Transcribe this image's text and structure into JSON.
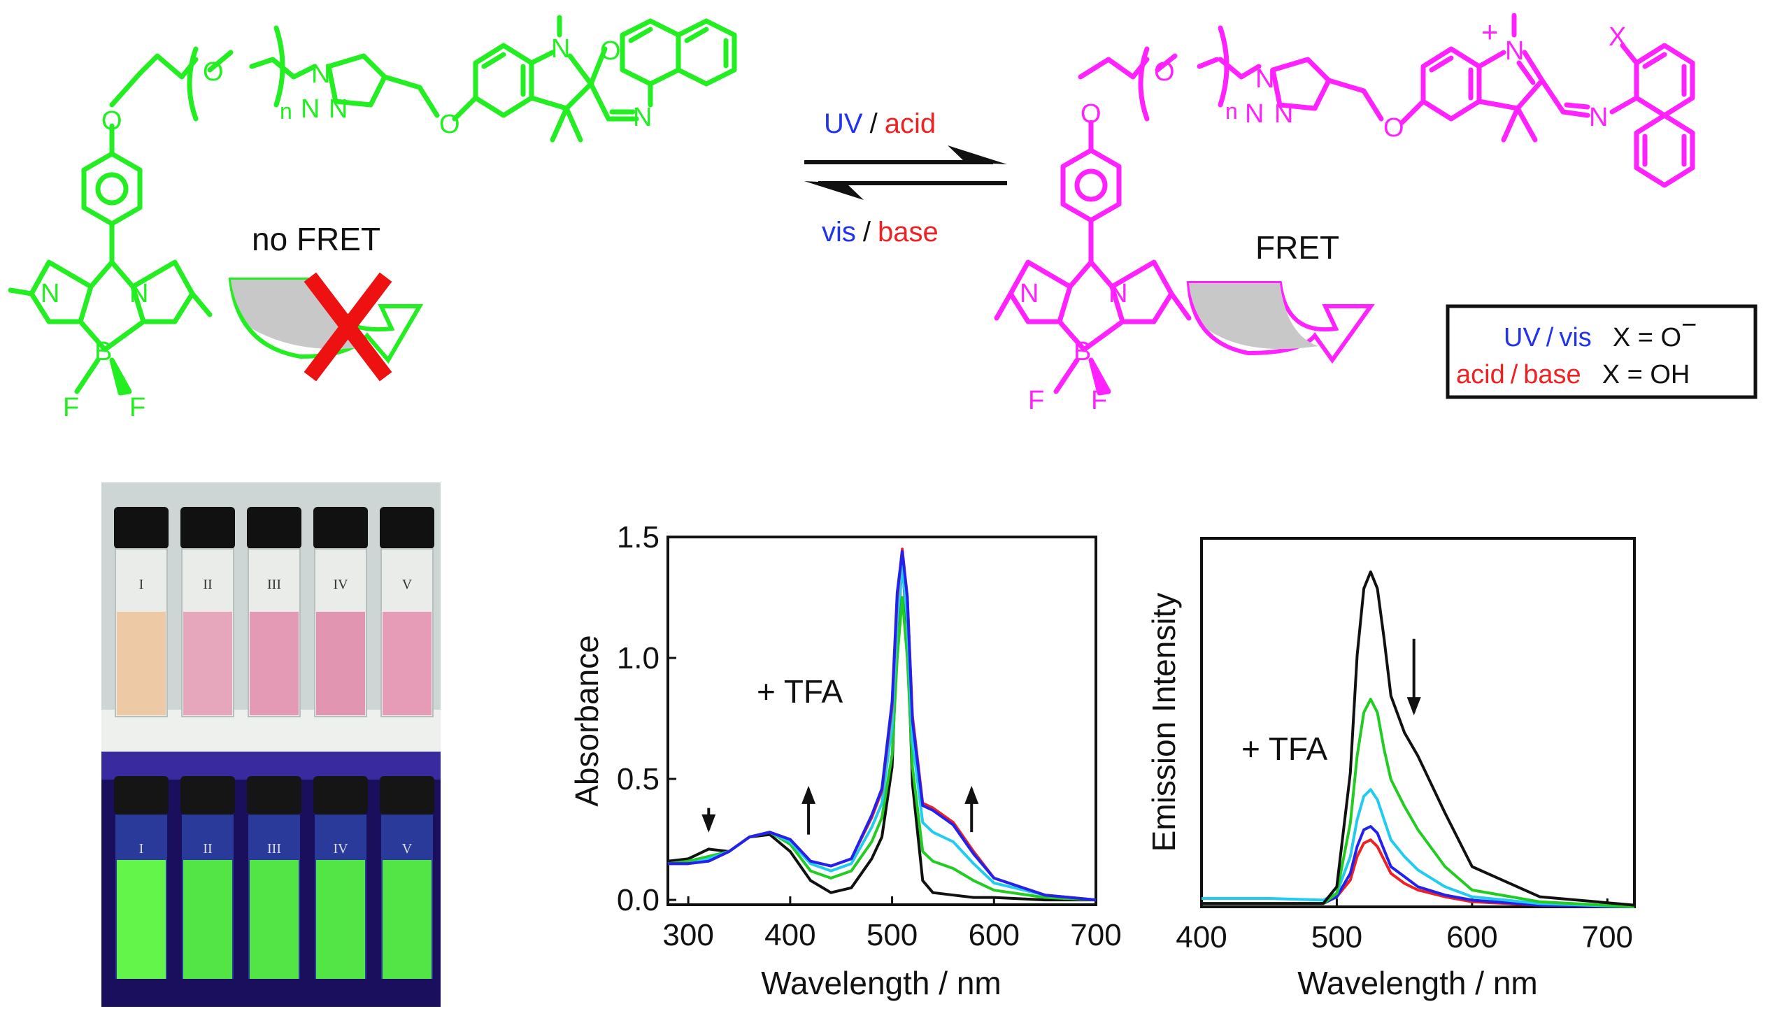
{
  "scheme": {
    "left_molecule": {
      "color": "#22ee22",
      "atoms": {
        "O1": "O",
        "O2": "O",
        "n": "n",
        "N1": "N",
        "N2": "N",
        "N3": "N",
        "O3": "O",
        "N_ind": "N",
        "O_ox": "O",
        "N_ox": "N",
        "Npy1": "N",
        "Npy2": "N",
        "B": "B",
        "F1": "F",
        "F2": "F"
      },
      "fret_label": "no FRET"
    },
    "right_molecule": {
      "color": "#ff22ff",
      "atoms": {
        "O1": "O",
        "O2": "O",
        "n": "n",
        "N1": "N",
        "N2": "N",
        "N3": "N",
        "O3": "O",
        "N_ind": "N",
        "plus": "+",
        "N_im": "N",
        "X": "X",
        "Npy1": "N",
        "Npy2": "N",
        "B": "B",
        "F1": "F",
        "F2": "F"
      },
      "fret_label": "FRET"
    },
    "arrows": {
      "forward": {
        "stimulus1": "UV",
        "sep": "/",
        "stimulus2": "acid"
      },
      "reverse": {
        "stimulus1": "vis",
        "sep": "/",
        "stimulus2": "base"
      }
    },
    "legend": {
      "row1": {
        "cond1": "UV",
        "sep": "/",
        "cond2": "vis",
        "x": "X = O",
        "charge": "−"
      },
      "row2": {
        "cond1": "acid",
        "sep": "/",
        "cond2": "base",
        "x": "X = OH"
      }
    },
    "colors": {
      "blue": "#2233ee",
      "red": "#ee2222",
      "black": "#111111",
      "gray": "#c8c8c8",
      "cross": "#ee1111"
    }
  },
  "photo": {
    "vials": [
      "I",
      "II",
      "III",
      "IV",
      "V"
    ],
    "daylight_colors": [
      "#edc9a6",
      "#e6a6bc",
      "#e49ab4",
      "#e295b1",
      "#e69bb7"
    ],
    "uv_colors": [
      "#66ff44",
      "#55ee40",
      "#55ee40",
      "#55ee40",
      "#55ee40"
    ]
  },
  "chart_data": [
    {
      "type": "line",
      "xlabel": "Wavelength / nm",
      "ylabel": "Absorbance",
      "annotation": "+ TFA",
      "xlim": [
        280,
        700
      ],
      "ylim": [
        -0.02,
        1.5
      ],
      "xticks": [
        300,
        400,
        500,
        600,
        700
      ],
      "yticks": [
        0.0,
        0.5,
        1.0,
        1.5
      ],
      "ytick_labels": [
        "0.0",
        "0.5",
        "1.0",
        "1.5"
      ],
      "arrows": [
        {
          "x": 320,
          "y_from": 0.38,
          "y_to": 0.29,
          "dir": "down"
        },
        {
          "x": 418,
          "y_from": 0.27,
          "y_to": 0.46,
          "dir": "up"
        },
        {
          "x": 578,
          "y_from": 0.28,
          "y_to": 0.46,
          "dir": "up"
        }
      ],
      "series": [
        {
          "color": "#111111",
          "x": [
            280,
            300,
            320,
            340,
            360,
            380,
            400,
            420,
            440,
            460,
            480,
            490,
            500,
            505,
            510,
            515,
            520,
            530,
            540,
            560,
            580,
            600,
            650,
            700
          ],
          "y": [
            0.16,
            0.17,
            0.21,
            0.2,
            0.26,
            0.27,
            0.2,
            0.08,
            0.03,
            0.05,
            0.17,
            0.26,
            0.55,
            1.1,
            1.4,
            1.1,
            0.48,
            0.08,
            0.03,
            0.02,
            0.01,
            0.01,
            0.0,
            0.0
          ]
        },
        {
          "color": "#22cc22",
          "x": [
            280,
            300,
            320,
            340,
            360,
            380,
            400,
            420,
            440,
            460,
            480,
            490,
            500,
            505,
            510,
            515,
            520,
            530,
            540,
            560,
            580,
            600,
            650,
            700
          ],
          "y": [
            0.15,
            0.16,
            0.18,
            0.2,
            0.26,
            0.28,
            0.23,
            0.12,
            0.09,
            0.12,
            0.24,
            0.34,
            0.6,
            1.0,
            1.25,
            1.0,
            0.55,
            0.2,
            0.16,
            0.13,
            0.08,
            0.04,
            0.01,
            0.0
          ]
        },
        {
          "color": "#22ccee",
          "x": [
            280,
            300,
            320,
            340,
            360,
            380,
            400,
            420,
            440,
            460,
            480,
            490,
            500,
            505,
            510,
            515,
            520,
            530,
            540,
            560,
            580,
            600,
            650,
            700
          ],
          "y": [
            0.15,
            0.15,
            0.17,
            0.2,
            0.26,
            0.28,
            0.24,
            0.15,
            0.12,
            0.15,
            0.3,
            0.4,
            0.72,
            1.15,
            1.38,
            1.15,
            0.66,
            0.32,
            0.28,
            0.24,
            0.15,
            0.07,
            0.02,
            0.0
          ]
        },
        {
          "color": "#ee2222",
          "x": [
            280,
            300,
            320,
            340,
            360,
            380,
            400,
            420,
            440,
            460,
            480,
            490,
            500,
            505,
            510,
            515,
            520,
            530,
            540,
            560,
            580,
            600,
            650,
            700
          ],
          "y": [
            0.15,
            0.15,
            0.16,
            0.2,
            0.26,
            0.28,
            0.25,
            0.16,
            0.14,
            0.17,
            0.34,
            0.45,
            0.8,
            1.25,
            1.45,
            1.25,
            0.76,
            0.4,
            0.38,
            0.32,
            0.2,
            0.09,
            0.02,
            0.0
          ]
        },
        {
          "color": "#2222ee",
          "x": [
            280,
            300,
            320,
            340,
            360,
            380,
            400,
            420,
            440,
            460,
            480,
            490,
            500,
            505,
            510,
            515,
            520,
            530,
            540,
            560,
            580,
            600,
            650,
            700
          ],
          "y": [
            0.15,
            0.15,
            0.16,
            0.2,
            0.26,
            0.28,
            0.25,
            0.16,
            0.14,
            0.17,
            0.35,
            0.46,
            0.82,
            1.27,
            1.44,
            1.25,
            0.74,
            0.39,
            0.37,
            0.31,
            0.19,
            0.09,
            0.02,
            0.0
          ]
        }
      ]
    },
    {
      "type": "line",
      "xlabel": "Wavelength / nm",
      "ylabel": "Emission Intensity",
      "annotation": "+ TFA",
      "xlim": [
        400,
        720
      ],
      "ylim": [
        0,
        1.1
      ],
      "xticks": [
        400,
        500,
        600,
        700
      ],
      "yticks": [],
      "arrows": [
        {
          "x": 557,
          "y_from": 0.8,
          "y_to": 0.58,
          "dir": "down"
        }
      ],
      "series": [
        {
          "color": "#ee2222",
          "x": [
            400,
            450,
            490,
            500,
            510,
            515,
            520,
            525,
            530,
            535,
            540,
            550,
            560,
            580,
            600,
            650,
            720
          ],
          "y": [
            0.01,
            0.01,
            0.01,
            0.03,
            0.08,
            0.15,
            0.19,
            0.2,
            0.18,
            0.14,
            0.1,
            0.07,
            0.05,
            0.03,
            0.015,
            0.005,
            0.0
          ]
        },
        {
          "color": "#2222ee",
          "x": [
            400,
            450,
            490,
            500,
            510,
            515,
            520,
            525,
            530,
            535,
            540,
            550,
            560,
            580,
            600,
            650,
            720
          ],
          "y": [
            0.01,
            0.01,
            0.01,
            0.03,
            0.1,
            0.18,
            0.23,
            0.24,
            0.22,
            0.17,
            0.12,
            0.09,
            0.06,
            0.035,
            0.02,
            0.005,
            0.0
          ]
        },
        {
          "color": "#22ccee",
          "x": [
            400,
            450,
            490,
            500,
            510,
            515,
            520,
            525,
            530,
            535,
            540,
            550,
            560,
            580,
            600,
            650,
            720
          ],
          "y": [
            0.025,
            0.025,
            0.02,
            0.04,
            0.15,
            0.26,
            0.33,
            0.35,
            0.32,
            0.26,
            0.2,
            0.15,
            0.11,
            0.06,
            0.03,
            0.01,
            0.0
          ]
        },
        {
          "color": "#22cc22",
          "x": [
            400,
            450,
            490,
            500,
            510,
            515,
            520,
            525,
            530,
            535,
            540,
            550,
            560,
            580,
            600,
            650,
            720
          ],
          "y": [
            0.01,
            0.01,
            0.01,
            0.04,
            0.25,
            0.45,
            0.58,
            0.62,
            0.58,
            0.47,
            0.38,
            0.3,
            0.23,
            0.12,
            0.05,
            0.015,
            0.0
          ]
        },
        {
          "color": "#111111",
          "x": [
            400,
            450,
            490,
            500,
            510,
            515,
            520,
            525,
            530,
            535,
            540,
            550,
            560,
            580,
            600,
            650,
            720
          ],
          "y": [
            0.01,
            0.01,
            0.01,
            0.06,
            0.4,
            0.75,
            0.95,
            1.0,
            0.95,
            0.8,
            0.63,
            0.52,
            0.45,
            0.28,
            0.12,
            0.03,
            0.005
          ]
        }
      ]
    }
  ]
}
